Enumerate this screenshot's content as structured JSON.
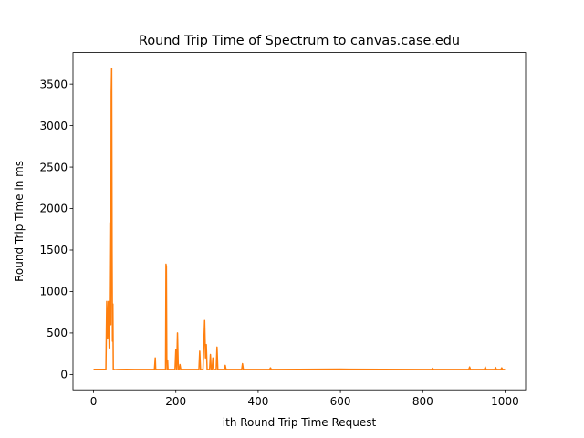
{
  "chart_data": {
    "type": "line",
    "title": "Round Trip Time of Spectrum to canvas.case.edu",
    "xlabel": "ith Round Trip Time Request",
    "ylabel": "Round Trip Time in ms",
    "xlim": [
      -50,
      1050
    ],
    "ylim": [
      -185,
      3880
    ],
    "xticks": [
      0,
      200,
      400,
      600,
      800,
      1000
    ],
    "xtick_labels": [
      "0",
      "200",
      "400",
      "600",
      "800",
      "1000"
    ],
    "yticks": [
      0,
      500,
      1000,
      1500,
      2000,
      2500,
      3000,
      3500
    ],
    "ytick_labels": [
      "0",
      "500",
      "1000",
      "1500",
      "2000",
      "2500",
      "3000",
      "3500"
    ],
    "grid": false,
    "series": [
      {
        "color": "#ff7f0e",
        "x": [
          0,
          28,
          30,
          32,
          34,
          36,
          38,
          40,
          42,
          43,
          44,
          45,
          46,
          47,
          48,
          50,
          52,
          60,
          80,
          100,
          148,
          150,
          151,
          152,
          170,
          175,
          176,
          177,
          178,
          179,
          180,
          181,
          195,
          198,
          200,
          202,
          204,
          206,
          208,
          210,
          212,
          214,
          216,
          256,
          258,
          260,
          262,
          266,
          268,
          270,
          272,
          274,
          276,
          278,
          282,
          284,
          286,
          288,
          290,
          292,
          294,
          296,
          298,
          300,
          302,
          304,
          306,
          318,
          320,
          322,
          360,
          362,
          364,
          428,
          430,
          432,
          500,
          600,
          700,
          800,
          822,
          824,
          826,
          900,
          912,
          914,
          916,
          918,
          950,
          952,
          954,
          975,
          977,
          979,
          990,
          992,
          994,
          1000
        ],
        "y": [
          62,
          62,
          65,
          880,
          430,
          880,
          320,
          1830,
          600,
          3400,
          3690,
          1500,
          400,
          850,
          62,
          60,
          58,
          60,
          62,
          60,
          62,
          200,
          70,
          60,
          60,
          60,
          1330,
          1300,
          200,
          60,
          170,
          60,
          60,
          60,
          300,
          60,
          500,
          60,
          60,
          120,
          60,
          60,
          60,
          60,
          280,
          60,
          60,
          60,
          360,
          650,
          200,
          360,
          60,
          60,
          60,
          240,
          60,
          60,
          200,
          60,
          60,
          60,
          60,
          330,
          60,
          60,
          60,
          60,
          110,
          60,
          60,
          130,
          60,
          60,
          80,
          60,
          62,
          64,
          62,
          60,
          60,
          75,
          60,
          60,
          60,
          90,
          60,
          60,
          60,
          90,
          60,
          60,
          85,
          60,
          60,
          80,
          60,
          60
        ]
      }
    ]
  }
}
